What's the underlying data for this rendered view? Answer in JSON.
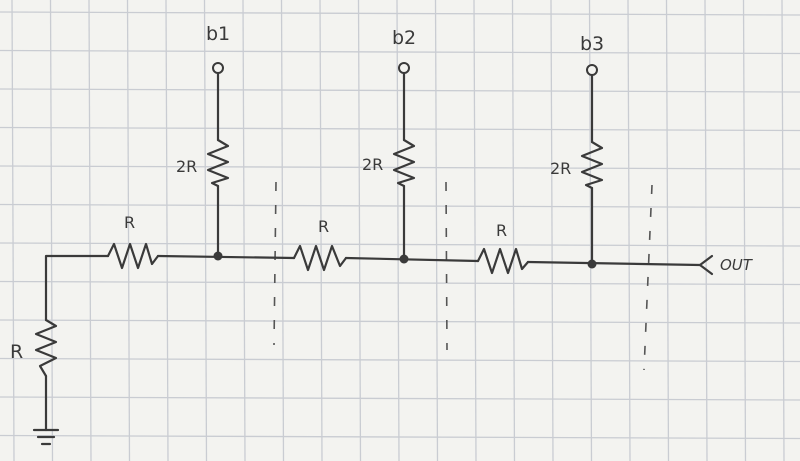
{
  "labels": {
    "bit1": "b1",
    "bit2": "b2",
    "bit3": "b3",
    "r_2r_1": "2R",
    "r_2r_2": "2R",
    "r_2r_3": "2R",
    "r_series_1": "R",
    "r_series_2": "R",
    "r_series_3": "R",
    "r_ground": "R",
    "output": "OUT"
  },
  "colors": {
    "paper": "#f3f3f0",
    "grid": "#c9ccd2",
    "ink": "#3a3a3a"
  }
}
